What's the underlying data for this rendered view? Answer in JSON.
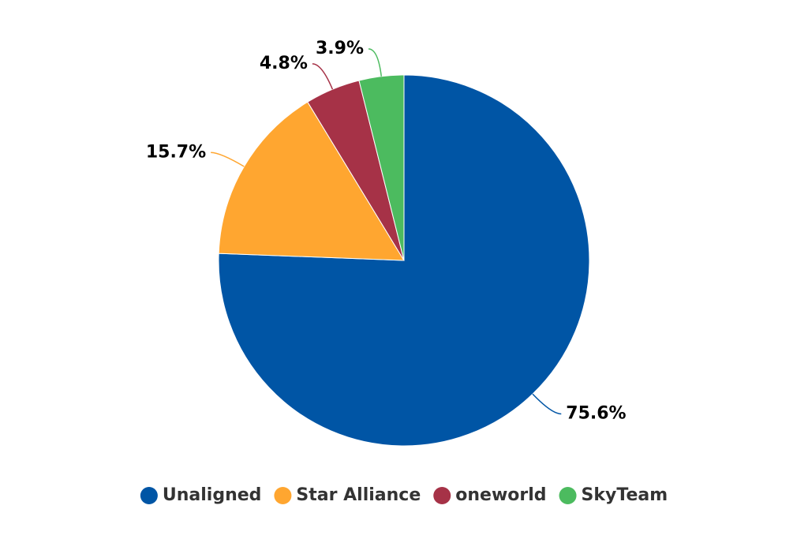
{
  "chart_data": {
    "type": "pie",
    "categories": [
      "Unaligned",
      "Star Alliance",
      "oneworld",
      "SkyTeam"
    ],
    "values": [
      75.6,
      15.7,
      4.8,
      3.9
    ],
    "value_labels": [
      "75.6%",
      "15.7%",
      "4.8%",
      "3.9%"
    ],
    "colors": [
      "#0055a5",
      "#ffa630",
      "#a63247",
      "#4cbb5f"
    ],
    "legend": "bottom"
  }
}
